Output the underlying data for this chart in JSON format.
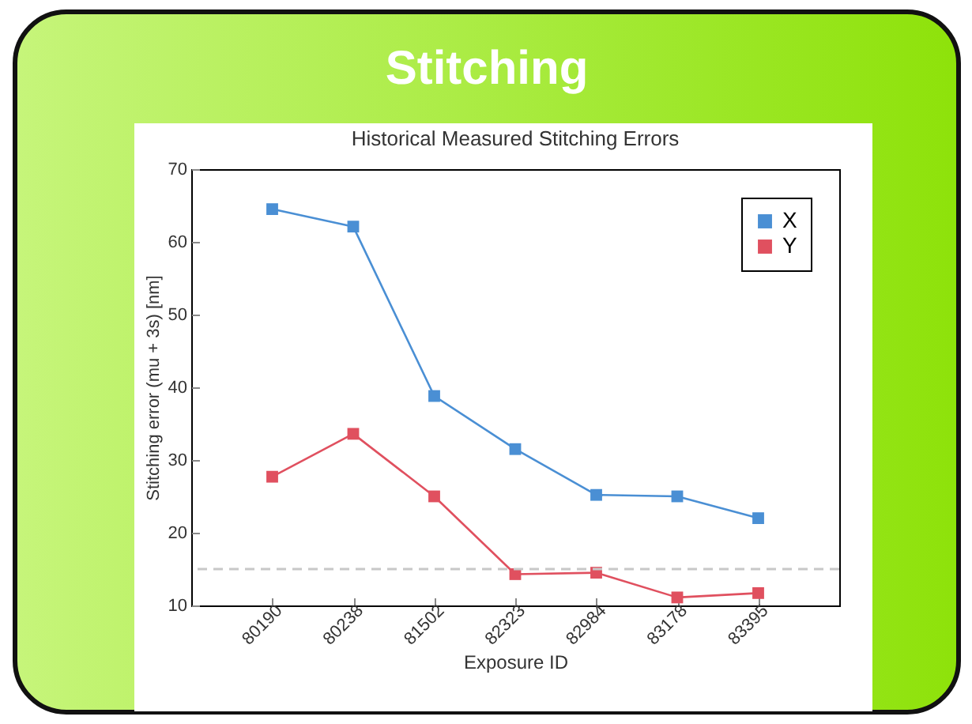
{
  "chart_data": {
    "type": "line",
    "title": "Stitching",
    "subtitle": "Historical Measured Stitching Errors",
    "xlabel": "Exposure ID",
    "ylabel": "Stitching error (mu + 3s) [nm]",
    "categories": [
      "80190",
      "80238",
      "81502",
      "82323",
      "82984",
      "83178",
      "83395"
    ],
    "series": [
      {
        "name": "X",
        "color": "#4a8fd4",
        "values": [
          64.5,
          62.1,
          38.8,
          31.5,
          25.2,
          25.0,
          22.0
        ]
      },
      {
        "name": "Y",
        "color": "#e0505f",
        "values": [
          27.7,
          33.6,
          25.0,
          14.3,
          14.5,
          11.1,
          11.7
        ]
      }
    ],
    "ylim": [
      10,
      70
    ],
    "yticks": [
      10,
      20,
      30,
      40,
      50,
      60,
      70
    ],
    "grid": false,
    "legend": "top right",
    "marker": "square",
    "line_style": "solid",
    "ref_lines": [
      {
        "axis": "y",
        "value": 15,
        "color": "#c8c8c8",
        "line_style": "dashed"
      }
    ]
  }
}
